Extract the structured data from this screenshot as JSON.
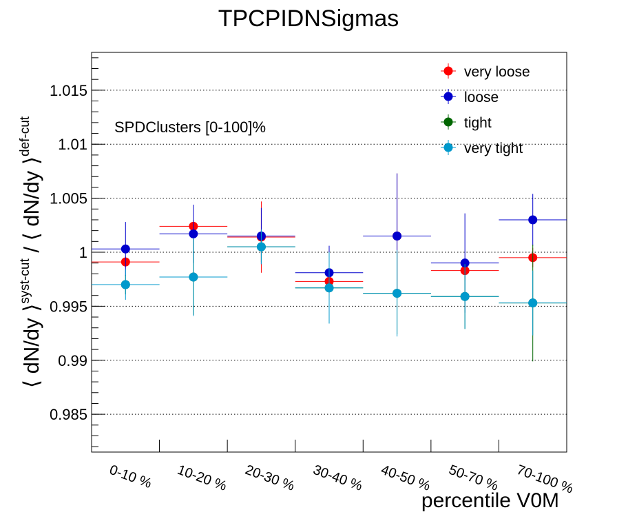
{
  "chart_data": {
    "type": "scatter",
    "title": "TPCPIDNSigmas",
    "xlabel": "percentile V0M",
    "ylabel": {
      "lhs_base": "⟨ dN/dy ⟩",
      "lhs_sup": "syst-cut",
      "sep": " / ",
      "rhs_base": "⟨ dN/dy ⟩",
      "rhs_sup": "def-cut"
    },
    "annotation": "SPDClusters [0-100]%",
    "categories": [
      "0-10 %",
      "10-20 %",
      "20-30 %",
      "30-40 %",
      "40-50 %",
      "50-70 %",
      "70-100 %"
    ],
    "ylim": [
      0.9815,
      1.0185
    ],
    "yticks": [
      {
        "value": 0.985,
        "label": "0.985"
      },
      {
        "value": 0.99,
        "label": "0.99"
      },
      {
        "value": 0.995,
        "label": "0.995"
      },
      {
        "value": 1.0,
        "label": "1"
      },
      {
        "value": 1.005,
        "label": "1.005"
      },
      {
        "value": 1.01,
        "label": "1.01"
      },
      {
        "value": 1.015,
        "label": "1.015"
      }
    ],
    "grid": "horizontal",
    "legend_position": "top-right",
    "series": [
      {
        "name": "very loose",
        "color": "#ff0000",
        "values": [
          0.9991,
          1.0024,
          1.0014,
          0.9973,
          1.0015,
          0.9983,
          0.9995
        ],
        "errors": [
          0.0005,
          0.0006,
          0.0033,
          0.0008,
          0.0058,
          0.0009,
          0.0009
        ]
      },
      {
        "name": "loose",
        "color": "#0000cc",
        "values": [
          1.0003,
          1.0017,
          1.0015,
          0.9981,
          1.0015,
          0.999,
          1.003
        ],
        "errors": [
          0.0025,
          0.0027,
          0.0026,
          0.0025,
          0.0058,
          0.0046,
          0.0024
        ]
      },
      {
        "name": "tight",
        "color": "#006600",
        "values": [
          0.997,
          0.9977,
          1.0005,
          0.9967,
          0.9962,
          0.9959,
          0.9953
        ],
        "errors": [
          0.0009,
          0.0035,
          0.0014,
          0.0032,
          0.0038,
          0.003,
          0.0054
        ]
      },
      {
        "name": "very tight",
        "color": "#0099cc",
        "values": [
          0.997,
          0.9977,
          1.0005,
          0.9967,
          0.9962,
          0.9959,
          0.9953
        ],
        "errors": [
          0.0014,
          0.0036,
          0.0016,
          0.0033,
          0.004,
          0.003,
          0.003
        ]
      }
    ]
  }
}
